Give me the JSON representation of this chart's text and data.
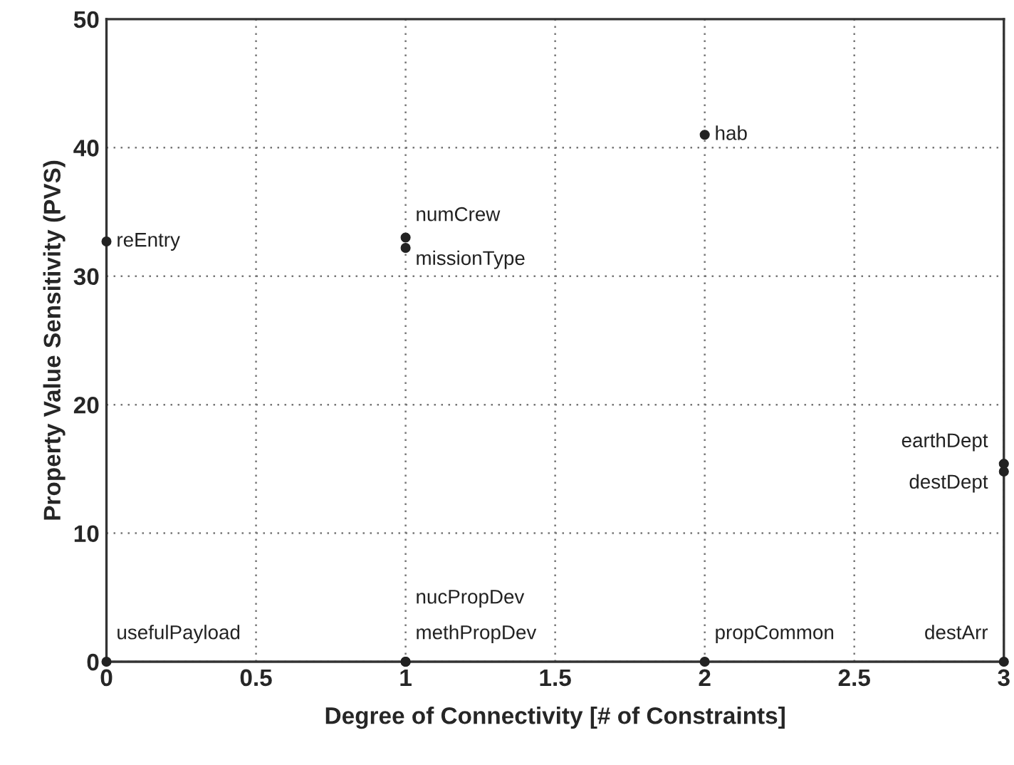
{
  "chart_data": {
    "type": "scatter",
    "xlabel": "Degree of Connectivity [# of Constraints]",
    "ylabel": "Property Value Sensitivity (PVS)",
    "series": [
      {
        "color": "#222222",
        "x": [
          0,
          1,
          1,
          2,
          3,
          3,
          0,
          1,
          1,
          2,
          3
        ],
        "values": [
          32.7,
          33.0,
          32.2,
          41.0,
          15.4,
          14.8,
          0,
          0,
          0,
          0,
          0
        ]
      }
    ],
    "annotations": [
      {
        "text": "reEntry",
        "x": 0,
        "y": 32.7
      },
      {
        "text": "numCrew",
        "x": 1,
        "y": 33.0
      },
      {
        "text": "missionType",
        "x": 1,
        "y": 32.2
      },
      {
        "text": "hab",
        "x": 2,
        "y": 41.0
      },
      {
        "text": "earthDept",
        "x": 3,
        "y": 15.4
      },
      {
        "text": "destDept",
        "x": 3,
        "y": 14.8
      },
      {
        "text": "usefulPayload",
        "x": 0,
        "y": 0
      },
      {
        "text": "nucPropDev",
        "x": 1,
        "y": 0
      },
      {
        "text": "methPropDev",
        "x": 1,
        "y": 0
      },
      {
        "text": "propCommon",
        "x": 2,
        "y": 0
      },
      {
        "text": "destArr",
        "x": 3,
        "y": 0
      }
    ],
    "xlim": [
      0,
      3
    ],
    "ylim": [
      0,
      50
    ],
    "xticks": [
      0,
      0.5,
      1,
      1.5,
      2,
      2.5,
      3
    ],
    "yticks": [
      0,
      10,
      20,
      30,
      40,
      50
    ],
    "grid": true,
    "marker": "circle",
    "legend": false
  }
}
